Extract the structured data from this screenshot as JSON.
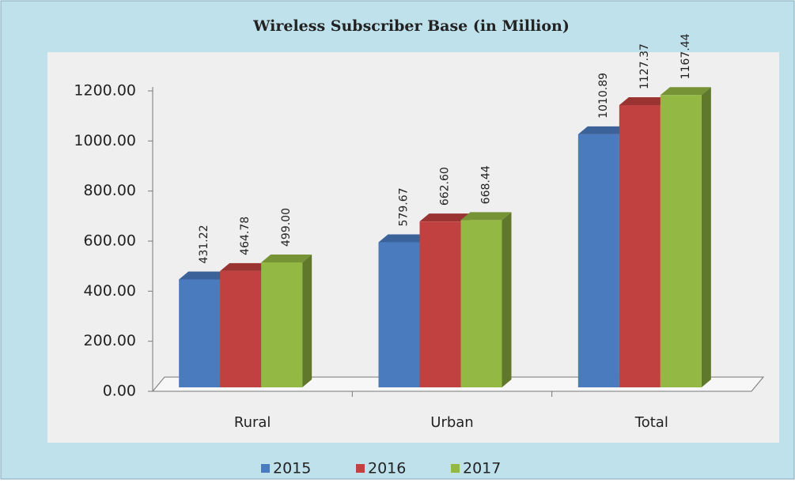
{
  "chart_data": {
    "type": "bar3d",
    "title": "Wireless Subscriber Base (in Million)",
    "categories": [
      "Rural",
      "Urban",
      "Total"
    ],
    "series": [
      {
        "name": "2015",
        "color": "#4a7bbf",
        "values": [
          431.22,
          579.67,
          1010.89
        ],
        "value_labels": [
          "431.22",
          "579.67",
          "1010.89"
        ]
      },
      {
        "name": "2016",
        "color": "#c0413f",
        "values": [
          464.78,
          662.6,
          1127.37
        ],
        "value_labels": [
          "464.78",
          "662.60",
          "1127.37"
        ]
      },
      {
        "name": "2017",
        "color": "#93b844",
        "values": [
          499,
          668.44,
          1167.44
        ],
        "value_labels": [
          "499.00",
          "668.44",
          "1167.44"
        ]
      }
    ],
    "ylim": [
      0,
      1200
    ],
    "yticks": [
      {
        "value": 0,
        "label": "0.00"
      },
      {
        "value": 200,
        "label": "200.00"
      },
      {
        "value": 400,
        "label": "400.00"
      },
      {
        "value": 600,
        "label": "600.00"
      },
      {
        "value": 800,
        "label": "800.00"
      },
      {
        "value": 1000,
        "label": "1000.00"
      },
      {
        "value": 1200,
        "label": "1200.00"
      }
    ],
    "legend": "bottom"
  }
}
